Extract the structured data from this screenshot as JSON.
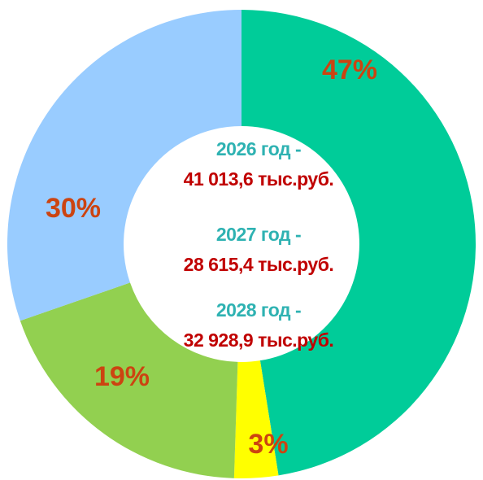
{
  "chart_data": {
    "type": "donut",
    "categories": [
      null,
      null,
      null,
      null
    ],
    "values": [
      47,
      3,
      19,
      30
    ],
    "value_labels": [
      "47%",
      "3%",
      "19%",
      "30%"
    ],
    "colors": [
      "#00cc99",
      "#ffff00",
      "#92d050",
      "#99ccff"
    ],
    "annotations": [
      "2026 год -",
      "41 013,6 тыс.руб.",
      "2027 год -",
      "28 615,4 тыс.руб.",
      "2028 год -",
      "32 928,9 тыс.руб."
    ]
  }
}
